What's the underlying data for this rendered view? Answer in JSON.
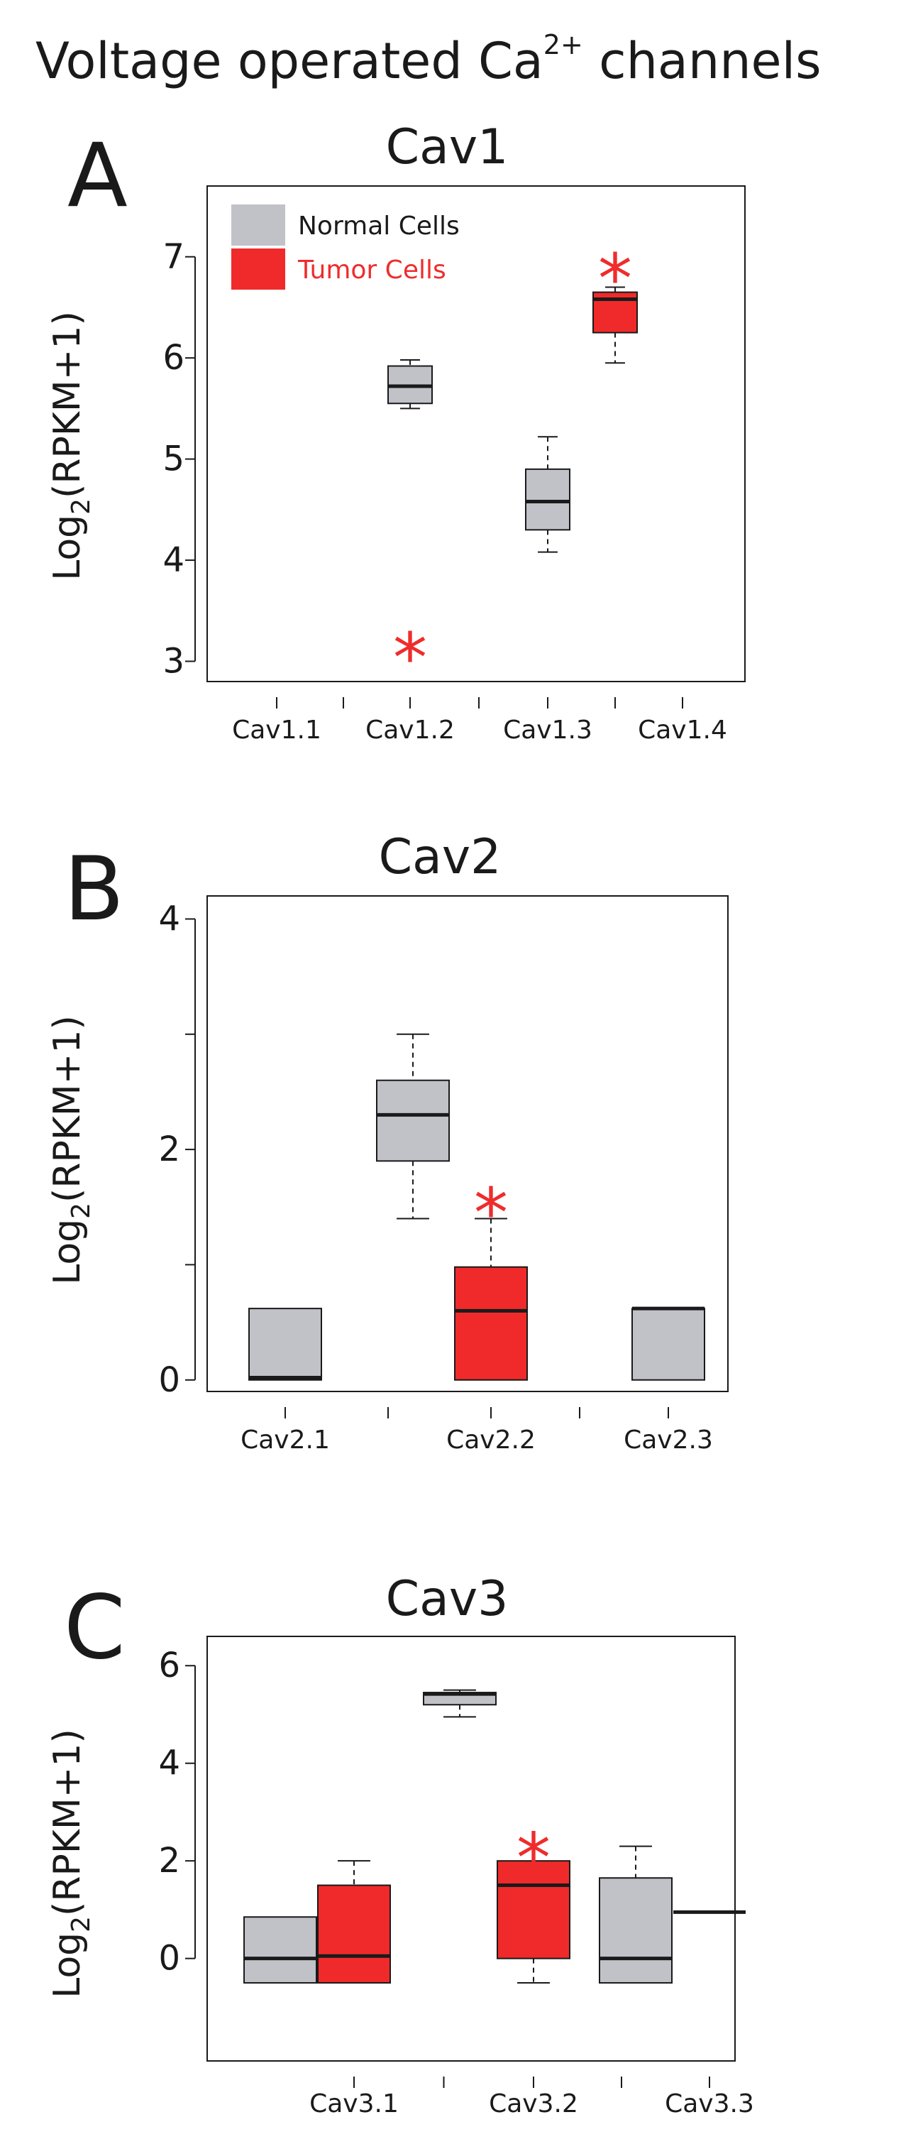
{
  "figure": {
    "title": "Voltage operated Ca",
    "title_sup": "2+",
    "title_suffix": " channels"
  },
  "colors": {
    "normal": "#c0c2c8",
    "tumor": "#f02a2a",
    "star": "#ef2c2c",
    "axis": "#1a1a1a"
  },
  "legend": {
    "normal_label": "Normal Cells",
    "tumor_label": "Tumor Cells"
  },
  "ylabel": {
    "prefix": "Log",
    "sub": "2",
    "suffix": "(RPKM+1)"
  },
  "chart_data": [
    {
      "type": "box",
      "panel": "A",
      "title": "Cav1",
      "ylim": [
        2.8,
        7.7
      ],
      "yticks": [
        3,
        4,
        5,
        6,
        7
      ],
      "ytick_labels": [
        "3",
        "4",
        "5",
        "6",
        "7"
      ],
      "categories": [
        "Cav1.1",
        "Cav1.2",
        "Cav1.3",
        "Cav1.4"
      ],
      "boxes": [
        {
          "category": "Cav1.2",
          "group": "normal",
          "offset": 0,
          "whisker_low": 5.5,
          "q1": 5.55,
          "median": 5.72,
          "q3": 5.92,
          "whisker_high": 5.98
        },
        {
          "category": "Cav1.3",
          "group": "normal",
          "offset": 0,
          "whisker_low": 4.08,
          "q1": 4.3,
          "median": 4.58,
          "q3": 4.9,
          "whisker_high": 5.22
        },
        {
          "category": "Cav1.3",
          "group": "tumor",
          "offset": 1,
          "whisker_low": 5.95,
          "q1": 6.25,
          "median": 6.58,
          "q3": 6.65,
          "whisker_high": 6.7
        }
      ],
      "markers": [
        {
          "symbol": "*",
          "category": "Cav1.2",
          "offset": 0,
          "y": 3.15
        },
        {
          "symbol": "*",
          "category": "Cav1.3",
          "offset": 1,
          "y": 6.9
        }
      ]
    },
    {
      "type": "box",
      "panel": "B",
      "title": "Cav2",
      "ylim": [
        -0.1,
        4.2
      ],
      "yticks": [
        0,
        1,
        2,
        3,
        4
      ],
      "ytick_labels": [
        "0",
        "",
        "2",
        "",
        "4"
      ],
      "categories": [
        "Cav2.1",
        "Cav2.2",
        "Cav2.3"
      ],
      "boxes": [
        {
          "category": "Cav2.1",
          "group": "normal",
          "offset": 0,
          "whisker_low": 0,
          "q1": 0,
          "median": 0.02,
          "q3": 0.62,
          "whisker_high": 0.62
        },
        {
          "category": "Cav2.2",
          "group": "normal",
          "offset": -1,
          "whisker_low": 1.4,
          "q1": 1.9,
          "median": 2.3,
          "q3": 2.6,
          "whisker_high": 3.0
        },
        {
          "category": "Cav2.2",
          "group": "tumor",
          "offset": 0,
          "whisker_low": 0,
          "q1": 0,
          "median": 0.6,
          "q3": 0.98,
          "whisker_high": 1.4
        },
        {
          "category": "Cav2.3",
          "group": "normal",
          "offset": 0,
          "whisker_low": 0,
          "q1": 0,
          "median": 0.62,
          "q3": 0.62,
          "whisker_high": 0.62
        }
      ],
      "markers": [
        {
          "symbol": "*",
          "category": "Cav2.2",
          "offset": 0,
          "y": 1.55
        }
      ]
    },
    {
      "type": "box",
      "panel": "C",
      "title": "Cav3",
      "ylim": [
        -2.1,
        6.6
      ],
      "yticks": [
        0,
        2,
        4,
        6
      ],
      "ytick_labels": [
        "0",
        "2",
        "4",
        "6"
      ],
      "categories": [
        "Cav3.1",
        "Cav3.2",
        "Cav3.3"
      ],
      "boxes": [
        {
          "category": "Cav3.1",
          "group": "normal",
          "offset": -1,
          "whisker_low": -0.5,
          "q1": -0.5,
          "median": 0,
          "q3": 0.85,
          "whisker_high": 0.85
        },
        {
          "category": "Cav3.1",
          "group": "tumor",
          "offset": 0,
          "whisker_low": -0.5,
          "q1": -0.5,
          "median": 0.05,
          "q3": 1.5,
          "whisker_high": 2.0
        },
        {
          "category": "Cav3.2",
          "group": "normal",
          "offset": -1,
          "whisker_low": 4.95,
          "q1": 5.2,
          "median": 5.42,
          "q3": 5.45,
          "whisker_high": 5.5
        },
        {
          "category": "Cav3.2",
          "group": "tumor",
          "offset": 0,
          "whisker_low": -0.5,
          "q1": 0,
          "median": 1.5,
          "q3": 2.0,
          "whisker_high": 2.0
        },
        {
          "category": "Cav3.3",
          "group": "normal",
          "offset": -1,
          "whisker_low": -0.5,
          "q1": -0.5,
          "median": 0,
          "q3": 1.65,
          "whisker_high": 2.3
        },
        {
          "category": "Cav3.3",
          "group": "line",
          "offset": 0,
          "whisker_low": 0.95,
          "q1": 0.95,
          "median": 0.95,
          "q3": 0.95,
          "whisker_high": 0.95
        }
      ],
      "markers": [
        {
          "symbol": "*",
          "category": "Cav3.2",
          "offset": 0,
          "y": 2.3
        }
      ]
    }
  ]
}
